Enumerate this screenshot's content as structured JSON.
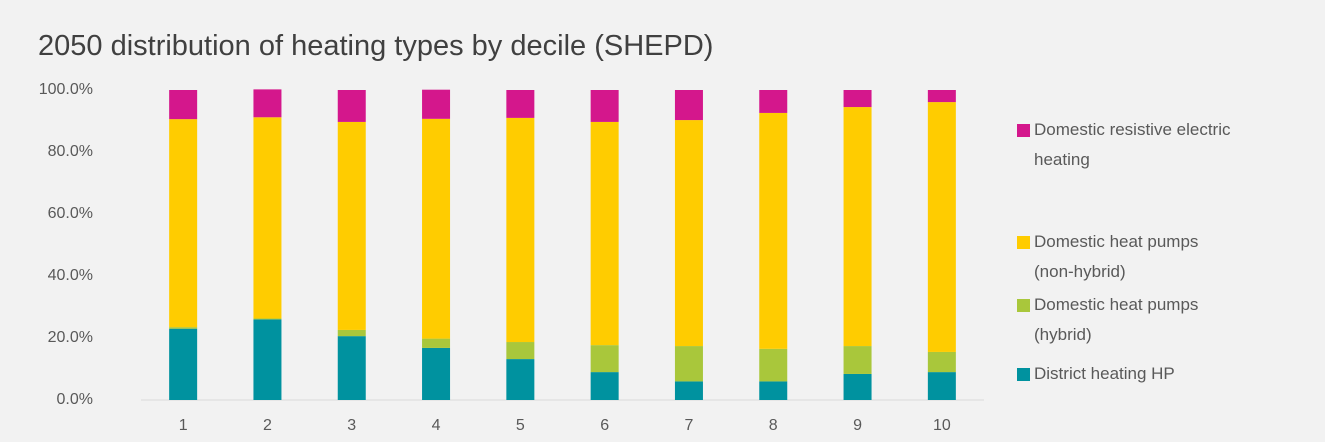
{
  "chart_data": {
    "type": "stacked_bar",
    "title": "2050 distribution of heating types by decile (SHEPD)",
    "categories": [
      "1",
      "2",
      "3",
      "4",
      "5",
      "6",
      "7",
      "8",
      "9",
      "10"
    ],
    "series": [
      {
        "name": "District heating HP",
        "color": "#00929f",
        "values": [
          23,
          26,
          20.6,
          16.8,
          13.2,
          9,
          6,
          6,
          8.4,
          9
        ]
      },
      {
        "name": "Domestic heat pumps (hybrid)",
        "color": "#a9c73b",
        "values": [
          0.5,
          0.3,
          2,
          3,
          5.5,
          8.7,
          11.4,
          10.5,
          9,
          6.5
        ]
      },
      {
        "name": "Domestic heat pumps (non-hybrid)",
        "color": "#ffcc00",
        "values": [
          67.1,
          64.9,
          67.1,
          70.9,
          72.3,
          72,
          72.9,
          76.1,
          77.1,
          80.6
        ]
      },
      {
        "name": "Domestic resistive electric heating",
        "color": "#d4178c",
        "values": [
          9.4,
          9,
          10.3,
          9.4,
          9,
          10.3,
          9.7,
          7.4,
          5.5,
          3.9
        ]
      }
    ],
    "ylim": [
      0,
      100
    ],
    "yticks": [
      {
        "value": 0,
        "label": "0.0%"
      },
      {
        "value": 20,
        "label": "20.0%"
      },
      {
        "value": 40,
        "label": "40.0%"
      },
      {
        "value": 60,
        "label": "60.0%"
      },
      {
        "value": 80,
        "label": "80.0%"
      },
      {
        "value": 100,
        "label": "100.0%"
      }
    ],
    "grid": false,
    "legend": "right"
  }
}
